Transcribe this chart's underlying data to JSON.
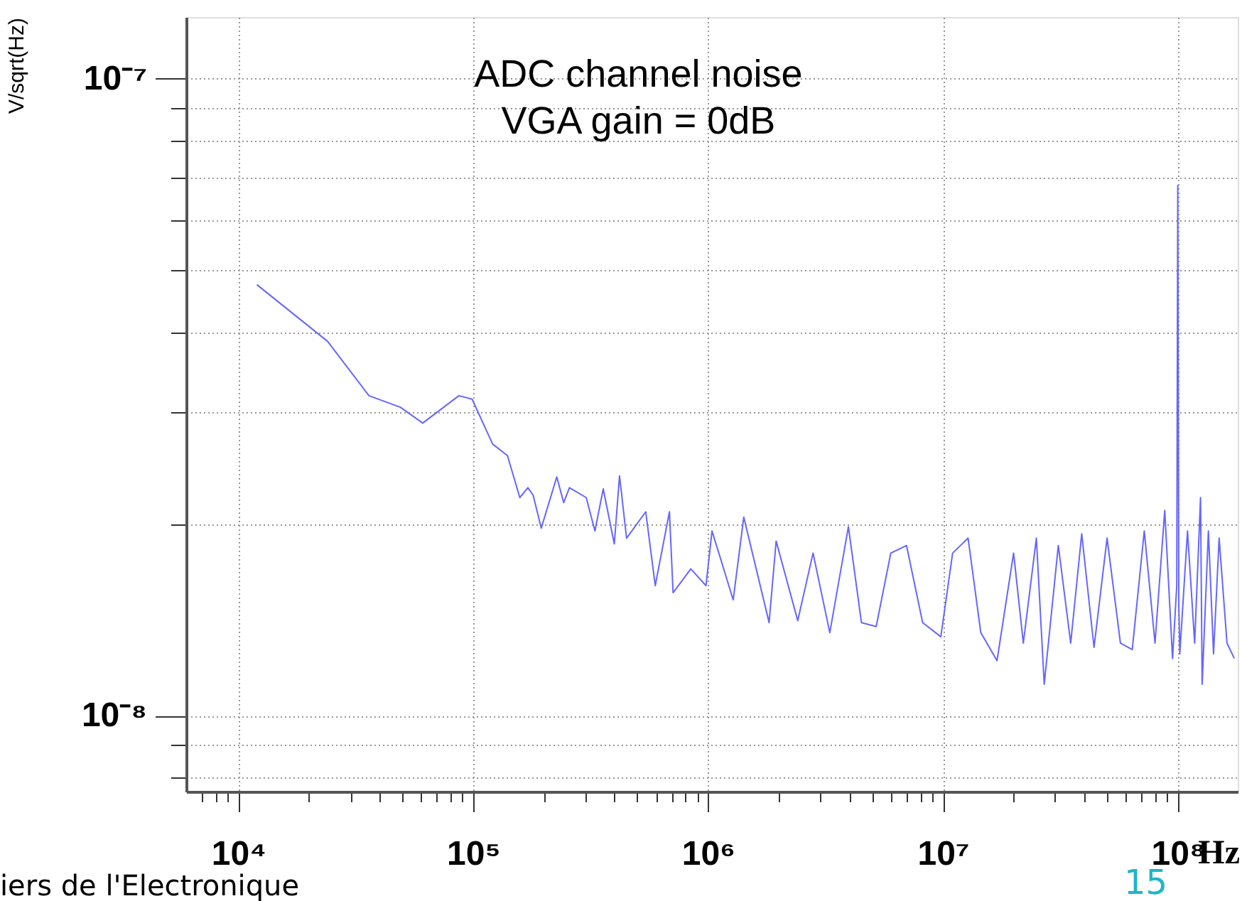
{
  "chart_data": {
    "type": "line",
    "xlabel": "Hz",
    "ylabel": "V/sqrt(Hz)",
    "annotations": [
      "ADC channel noise",
      "VGA gain = 0dB",
      "iers de l'Electronique",
      "15"
    ],
    "log": "xy",
    "grid": true,
    "line_style": "solid",
    "marker": "none",
    "xlim": [
      6000,
      180000000
    ],
    "ylim": [
      7.6e-09,
      1.25e-07
    ],
    "xticks": [
      {
        "value": 10000,
        "label": "10⁴"
      },
      {
        "value": 20000,
        "label": null
      },
      {
        "value": 30000,
        "label": null
      },
      {
        "value": 40000,
        "label": null
      },
      {
        "value": 50000,
        "label": null
      },
      {
        "value": 60000,
        "label": null
      },
      {
        "value": 70000,
        "label": null
      },
      {
        "value": 80000,
        "label": null
      },
      {
        "value": 90000,
        "label": null
      },
      {
        "value": 100000,
        "label": "10⁵"
      },
      {
        "value": 200000,
        "label": null
      },
      {
        "value": 300000,
        "label": null
      },
      {
        "value": 400000,
        "label": null
      },
      {
        "value": 500000,
        "label": null
      },
      {
        "value": 600000,
        "label": null
      },
      {
        "value": 700000,
        "label": null
      },
      {
        "value": 800000,
        "label": null
      },
      {
        "value": 900000,
        "label": null
      },
      {
        "value": 1000000,
        "label": "10⁶"
      },
      {
        "value": 2000000,
        "label": null
      },
      {
        "value": 3000000,
        "label": null
      },
      {
        "value": 4000000,
        "label": null
      },
      {
        "value": 5000000,
        "label": null
      },
      {
        "value": 6000000,
        "label": null
      },
      {
        "value": 7000000,
        "label": null
      },
      {
        "value": 8000000,
        "label": null
      },
      {
        "value": 9000000,
        "label": null
      },
      {
        "value": 10000000,
        "label": "10⁷"
      },
      {
        "value": 20000000,
        "label": null
      },
      {
        "value": 30000000,
        "label": null
      },
      {
        "value": 40000000,
        "label": null
      },
      {
        "value": 50000000,
        "label": null
      },
      {
        "value": 60000000,
        "label": null
      },
      {
        "value": 70000000,
        "label": null
      },
      {
        "value": 80000000,
        "label": null
      },
      {
        "value": 90000000,
        "label": null
      },
      {
        "value": 100000000,
        "label": "10⁸"
      },
      {
        "value": 7000,
        "label": null
      },
      {
        "value": 8000,
        "label": null
      },
      {
        "value": 9000,
        "label": null
      }
    ],
    "yticks": [
      {
        "value": 1e-07,
        "label": "10⁻⁷"
      },
      {
        "value": 9e-08,
        "label": null
      },
      {
        "value": 8e-08,
        "label": null
      },
      {
        "value": 7e-08,
        "label": null
      },
      {
        "value": 6e-08,
        "label": null
      },
      {
        "value": 5e-08,
        "label": null
      },
      {
        "value": 4e-08,
        "label": null
      },
      {
        "value": 3e-08,
        "label": null
      },
      {
        "value": 2e-08,
        "label": null
      },
      {
        "value": 1e-08,
        "label": "10⁻⁸"
      },
      {
        "value": 9e-09,
        "label": null
      },
      {
        "value": 8e-09,
        "label": null
      }
    ],
    "series": [
      {
        "color": "#6666ff",
        "x": [
          12000,
          24000,
          36000,
          49000,
          61000,
          87000,
          99000,
          121000,
          140000,
          158000,
          171000,
          180000,
          195000,
          227000,
          243000,
          257000,
          303000,
          330000,
          358000,
          399000,
          420000,
          450000,
          543000,
          596000,
          685000,
          710000,
          845000,
          980000,
          1040000,
          1280000,
          1420000,
          1820000,
          1950000,
          2410000,
          2800000,
          3300000,
          3960000,
          4500000,
          5200000,
          6000000,
          7000000,
          8200000,
          9800000,
          11000000,
          12800000,
          14500000,
          17000000,
          20000000,
          22000000,
          25000000,
          27000000,
          31000000,
          35000000,
          39000000,
          44000000,
          50000000,
          57000000,
          64000000,
          72000000,
          80000000,
          88000000,
          95000000,
          99000000,
          100000000,
          101000000,
          102000000,
          110000000,
          118000000,
          125000000,
          127000000,
          135000000,
          142000000,
          150000000,
          162000000,
          174000000
        ],
        "values": [
          4.75e-08,
          3.87e-08,
          3.18e-08,
          3.05e-08,
          2.88e-08,
          3.18e-08,
          3.14e-08,
          2.67e-08,
          2.56e-08,
          2.2e-08,
          2.28e-08,
          2.22e-08,
          1.97e-08,
          2.37e-08,
          2.16e-08,
          2.28e-08,
          2.2e-08,
          1.95e-08,
          2.27e-08,
          1.86e-08,
          2.38e-08,
          1.9e-08,
          2.09e-08,
          1.6e-08,
          2.09e-08,
          1.56e-08,
          1.7e-08,
          1.6e-08,
          1.95e-08,
          1.52e-08,
          2.05e-08,
          1.4e-08,
          1.88e-08,
          1.41e-08,
          1.8e-08,
          1.35e-08,
          1.98e-08,
          1.4e-08,
          1.38e-08,
          1.8e-08,
          1.85e-08,
          1.4e-08,
          1.33e-08,
          1.8e-08,
          1.9e-08,
          1.35e-08,
          1.22e-08,
          1.8e-08,
          1.3e-08,
          1.9e-08,
          1.12e-08,
          1.85e-08,
          1.3e-08,
          1.93e-08,
          1.28e-08,
          1.9e-08,
          1.3e-08,
          1.27e-08,
          1.95e-08,
          1.3e-08,
          2.1e-08,
          1.23e-08,
          1.6e-08,
          6.8e-08,
          1.5e-08,
          1.25e-08,
          1.95e-08,
          1.3e-08,
          2.2e-08,
          1.12e-08,
          1.95e-08,
          1.25e-08,
          1.9e-08,
          1.3e-08,
          1.23e-08
        ]
      }
    ]
  }
}
